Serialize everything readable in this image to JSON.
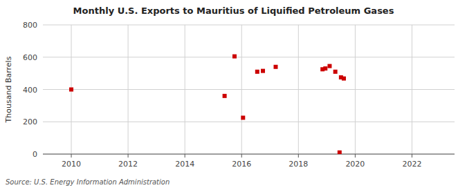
{
  "chart_data": {
    "type": "scatter",
    "title": "Monthly U.S. Exports to Mauritius of Liquified Petroleum Gases",
    "y_label": "Thousand Barrels",
    "annotations": [
      "Source: U.S. Energy Information Administration"
    ],
    "x": [
      2010.0,
      2015.4,
      2015.75,
      2016.05,
      2016.55,
      2016.75,
      2017.2,
      2018.85,
      2018.95,
      2019.1,
      2019.3,
      2019.5,
      2019.6,
      2019.45
    ],
    "values": [
      400,
      360,
      605,
      225,
      510,
      515,
      540,
      525,
      530,
      545,
      510,
      475,
      468,
      10
    ],
    "color": "#cc0000",
    "marker": "square",
    "xlim": [
      2009.0,
      2023.5
    ],
    "ylim": [
      0,
      800
    ],
    "xticks": [
      2010,
      2012,
      2014,
      2016,
      2018,
      2020,
      2022
    ],
    "yticks": [
      0,
      200,
      400,
      600,
      800
    ],
    "grid": true
  }
}
